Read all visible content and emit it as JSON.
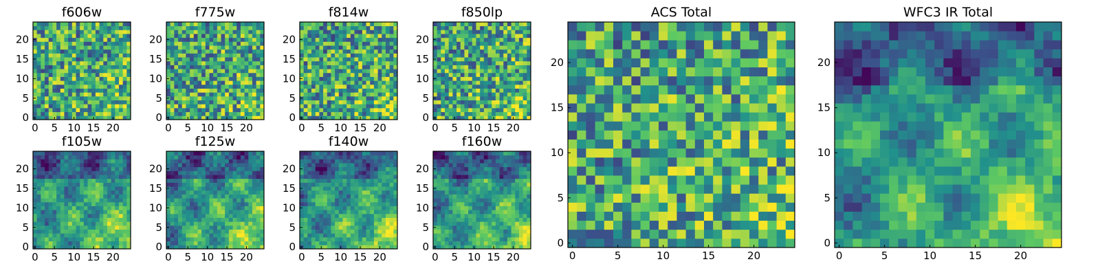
{
  "figure": {
    "colormap": "viridis",
    "colors": [
      "#440154",
      "#3b528b",
      "#21918c",
      "#5ec962",
      "#fde725"
    ]
  },
  "chart_data": [
    {
      "type": "heatmap",
      "title": "f606w",
      "grid": [
        25,
        25
      ],
      "xlim": [
        0,
        24
      ],
      "ylim": [
        0,
        24
      ],
      "xticks": [
        0,
        5,
        10,
        15,
        20
      ],
      "yticks": [
        0,
        5,
        10,
        15,
        20
      ],
      "pattern": "noise",
      "seed": 11
    },
    {
      "type": "heatmap",
      "title": "f775w",
      "grid": [
        25,
        25
      ],
      "xlim": [
        0,
        24
      ],
      "ylim": [
        0,
        24
      ],
      "xticks": [
        0,
        5,
        10,
        15,
        20
      ],
      "yticks": [
        0,
        5,
        10,
        15,
        20
      ],
      "pattern": "noise",
      "seed": 23
    },
    {
      "type": "heatmap",
      "title": "f814w",
      "grid": [
        25,
        25
      ],
      "xlim": [
        0,
        24
      ],
      "ylim": [
        0,
        24
      ],
      "xticks": [
        0,
        5,
        10,
        15,
        20
      ],
      "yticks": [
        0,
        5,
        10,
        15,
        20
      ],
      "pattern": "noise",
      "seed": 37
    },
    {
      "type": "heatmap",
      "title": "f850lp",
      "grid": [
        25,
        25
      ],
      "xlim": [
        0,
        24
      ],
      "ylim": [
        0,
        24
      ],
      "xticks": [
        0,
        5,
        10,
        15,
        20
      ],
      "yticks": [
        0,
        5,
        10,
        15,
        20
      ],
      "pattern": "noise",
      "seed": 41
    },
    {
      "type": "heatmap",
      "title": "f105w",
      "grid": [
        25,
        25
      ],
      "xlim": [
        0,
        24
      ],
      "ylim": [
        0,
        24
      ],
      "xticks": [
        0,
        5,
        10,
        15,
        20
      ],
      "yticks": [
        0,
        5,
        10,
        15,
        20
      ],
      "pattern": "smooth",
      "seed": 53
    },
    {
      "type": "heatmap",
      "title": "f125w",
      "grid": [
        25,
        25
      ],
      "xlim": [
        0,
        24
      ],
      "ylim": [
        0,
        24
      ],
      "xticks": [
        0,
        5,
        10,
        15,
        20
      ],
      "yticks": [
        0,
        5,
        10,
        15,
        20
      ],
      "pattern": "smooth",
      "seed": 67
    },
    {
      "type": "heatmap",
      "title": "f140w",
      "grid": [
        25,
        25
      ],
      "xlim": [
        0,
        24
      ],
      "ylim": [
        0,
        24
      ],
      "xticks": [
        0,
        5,
        10,
        15,
        20
      ],
      "yticks": [
        0,
        5,
        10,
        15,
        20
      ],
      "pattern": "smooth",
      "seed": 71
    },
    {
      "type": "heatmap",
      "title": "f160w",
      "grid": [
        25,
        25
      ],
      "xlim": [
        0,
        24
      ],
      "ylim": [
        0,
        24
      ],
      "xticks": [
        0,
        5,
        10,
        15,
        20
      ],
      "yticks": [
        0,
        5,
        10,
        15,
        20
      ],
      "pattern": "smooth",
      "seed": 89
    },
    {
      "type": "heatmap",
      "title": "ACS Total",
      "grid": [
        25,
        25
      ],
      "xlim": [
        0,
        24
      ],
      "ylim": [
        0,
        24
      ],
      "xticks": [
        0,
        5,
        10,
        15,
        20
      ],
      "yticks": [
        0,
        5,
        10,
        15,
        20
      ],
      "pattern": "noise",
      "seed": 97
    },
    {
      "type": "heatmap",
      "title": "WFC3 IR Total",
      "grid": [
        25,
        25
      ],
      "xlim": [
        0,
        24
      ],
      "ylim": [
        0,
        24
      ],
      "xticks": [
        0,
        5,
        10,
        15,
        20
      ],
      "yticks": [
        0,
        5,
        10,
        15,
        20
      ],
      "pattern": "smooth",
      "seed": 101
    }
  ]
}
